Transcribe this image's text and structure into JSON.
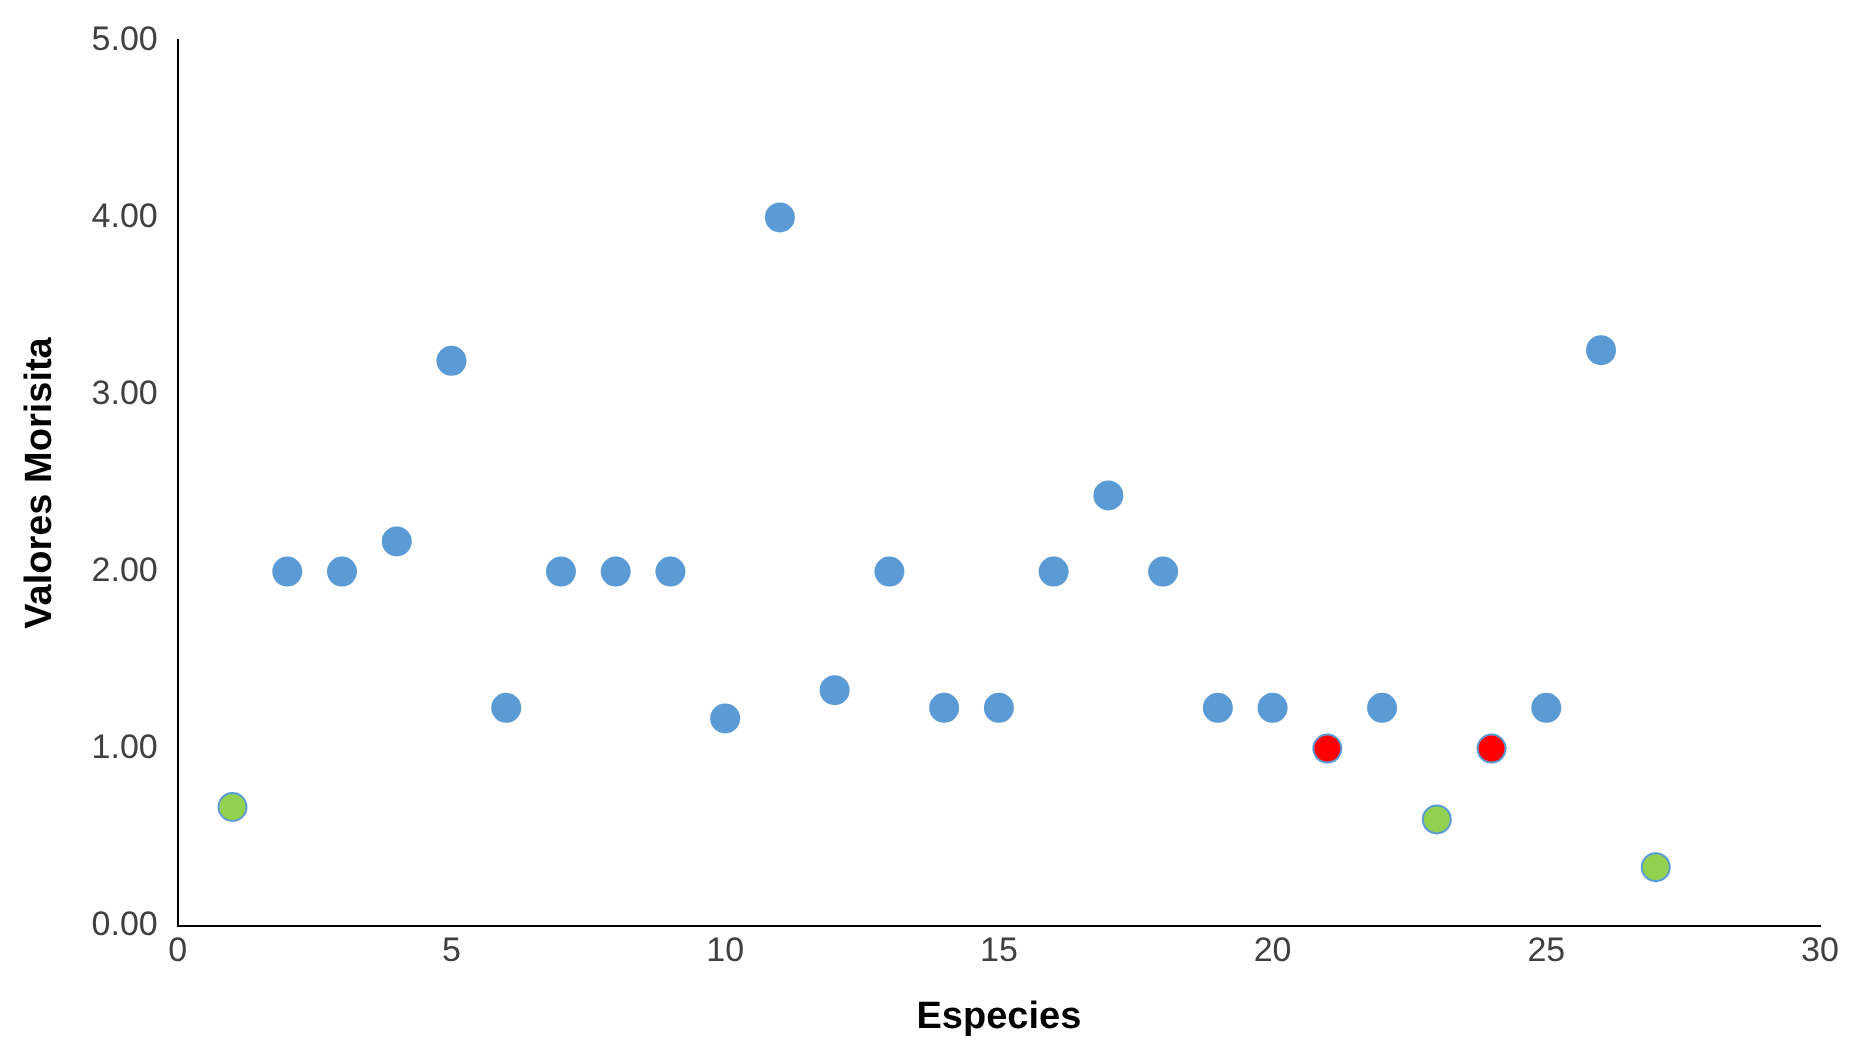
{
  "chart_data": {
    "type": "scatter",
    "xlabel": "Especies",
    "ylabel": "Valores Morisita",
    "x": [
      1,
      2,
      3,
      4,
      5,
      6,
      7,
      8,
      9,
      10,
      11,
      12,
      13,
      14,
      15,
      16,
      17,
      18,
      19,
      20,
      21,
      22,
      23,
      24,
      25,
      26,
      27
    ],
    "values": [
      0.67,
      2.0,
      2.0,
      2.17,
      3.19,
      1.23,
      2.0,
      2.0,
      2.0,
      1.17,
      4.0,
      1.33,
      2.0,
      1.23,
      1.23,
      2.0,
      2.43,
      2.0,
      1.23,
      1.23,
      1.0,
      1.23,
      0.6,
      1.0,
      1.23,
      3.25,
      0.33
    ],
    "colors": [
      "#92d050",
      "#5b9bd5",
      "#5b9bd5",
      "#5b9bd5",
      "#5b9bd5",
      "#5b9bd5",
      "#5b9bd5",
      "#5b9bd5",
      "#5b9bd5",
      "#5b9bd5",
      "#5b9bd5",
      "#5b9bd5",
      "#5b9bd5",
      "#5b9bd5",
      "#5b9bd5",
      "#5b9bd5",
      "#5b9bd5",
      "#5b9bd5",
      "#5b9bd5",
      "#5b9bd5",
      "#ff0000",
      "#5b9bd5",
      "#92d050",
      "#ff0000",
      "#5b9bd5",
      "#5b9bd5",
      "#92d050"
    ],
    "xlim": [
      0,
      30
    ],
    "xticks": [
      0,
      5,
      10,
      15,
      20,
      25,
      30
    ],
    "ylim": [
      0,
      5
    ],
    "yticks": [
      {
        "value": 0,
        "label": "0.00"
      },
      {
        "value": 1,
        "label": "1.00"
      },
      {
        "value": 2,
        "label": "2.00"
      },
      {
        "value": 3,
        "label": "3.00"
      },
      {
        "value": 4,
        "label": "4.00"
      },
      {
        "value": 5,
        "label": "5.00"
      }
    ],
    "grid": false,
    "legend": false,
    "marker": "circle"
  }
}
